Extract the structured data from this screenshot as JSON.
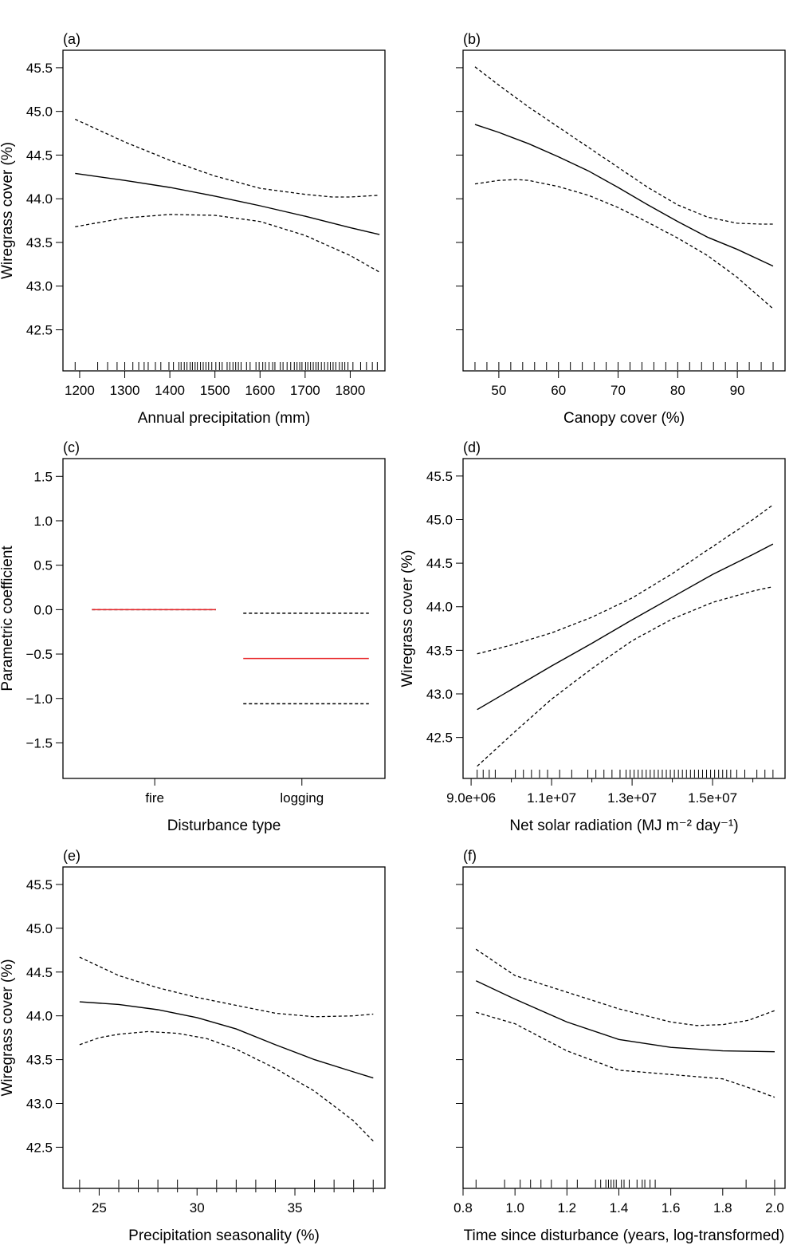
{
  "chart_data": [
    {
      "type": "line",
      "title": "(a)",
      "letter": "a",
      "xlabel": "Annual precipitation (mm)",
      "ylabel": "Wiregrass cover (%)",
      "show_ylabels": true,
      "xlim": [
        1163,
        1877
      ],
      "ylim": [
        42.03,
        45.7
      ],
      "xticks": [
        1200,
        1300,
        1400,
        1500,
        1600,
        1700,
        1800
      ],
      "xtick_labels": [
        "1200",
        "1300",
        "1400",
        "1500",
        "1600",
        "1700",
        "1800"
      ],
      "yticks": [
        42.5,
        43.0,
        43.5,
        44.0,
        44.5,
        45.0,
        45.5
      ],
      "ytick_labels": [
        "42.5",
        "43.0",
        "43.5",
        "44.0",
        "44.5",
        "45.0",
        "45.5"
      ],
      "series": [
        {
          "style": "solid",
          "x": [
            1190,
            1300,
            1400,
            1500,
            1600,
            1700,
            1800,
            1865
          ],
          "y": [
            44.29,
            44.21,
            44.13,
            44.03,
            43.92,
            43.8,
            43.67,
            43.59
          ]
        },
        {
          "style": "dashed",
          "x": [
            1190,
            1300,
            1400,
            1500,
            1600,
            1700,
            1760,
            1800,
            1865
          ],
          "y": [
            44.91,
            44.65,
            44.44,
            44.26,
            44.12,
            44.05,
            44.02,
            44.02,
            44.04
          ]
        },
        {
          "style": "dashed",
          "x": [
            1190,
            1300,
            1400,
            1500,
            1600,
            1700,
            1800,
            1865
          ],
          "y": [
            43.68,
            43.78,
            43.82,
            43.81,
            43.74,
            43.58,
            43.35,
            43.16
          ]
        }
      ],
      "rug": [
        1190,
        1240,
        1262,
        1283,
        1300,
        1318,
        1331,
        1343,
        1352,
        1368,
        1380,
        1398,
        1408,
        1420,
        1425,
        1432,
        1438,
        1445,
        1450,
        1456,
        1461,
        1468,
        1474,
        1480,
        1486,
        1493,
        1502,
        1510,
        1516,
        1527,
        1533,
        1540,
        1546,
        1552,
        1558,
        1570,
        1578,
        1591,
        1598,
        1606,
        1612,
        1620,
        1628,
        1633,
        1645,
        1651,
        1660,
        1668,
        1676,
        1682,
        1688,
        1693,
        1701,
        1706,
        1712,
        1718,
        1724,
        1729,
        1736,
        1743,
        1750,
        1756,
        1762,
        1768,
        1776,
        1782,
        1788,
        1795,
        1806,
        1823,
        1836,
        1849,
        1860
      ]
    },
    {
      "type": "line",
      "title": "(b)",
      "letter": "b",
      "xlabel": "Canopy cover (%)",
      "ylabel": "",
      "show_ylabels": false,
      "xlim": [
        44,
        98
      ],
      "ylim": [
        42.03,
        45.7
      ],
      "xticks": [
        50,
        60,
        70,
        80,
        90
      ],
      "xtick_labels": [
        "50",
        "60",
        "70",
        "80",
        "90"
      ],
      "yticks": [
        42.5,
        43.0,
        43.5,
        44.0,
        44.5,
        45.0,
        45.5
      ],
      "ytick_labels": [],
      "series": [
        {
          "style": "solid",
          "x": [
            46,
            50,
            55,
            60,
            65,
            70,
            75,
            80,
            85,
            90,
            96
          ],
          "y": [
            44.85,
            44.76,
            44.63,
            44.48,
            44.32,
            44.13,
            43.93,
            43.74,
            43.56,
            43.42,
            43.23
          ]
        },
        {
          "style": "dashed",
          "x": [
            46,
            50,
            55,
            60,
            65,
            70,
            75,
            80,
            85,
            90,
            94,
            96
          ],
          "y": [
            45.51,
            45.3,
            45.05,
            44.82,
            44.59,
            44.36,
            44.13,
            43.93,
            43.79,
            43.72,
            43.71,
            43.71
          ]
        },
        {
          "style": "dashed",
          "x": [
            46,
            50,
            53,
            55,
            60,
            65,
            70,
            75,
            80,
            85,
            90,
            96
          ],
          "y": [
            44.17,
            44.21,
            44.22,
            44.21,
            44.14,
            44.04,
            43.9,
            43.73,
            43.55,
            43.35,
            43.1,
            42.74
          ]
        }
      ],
      "rug": [
        46,
        48,
        50,
        52,
        54,
        56,
        58,
        60,
        62,
        64,
        66,
        68,
        70,
        72,
        74,
        76,
        78,
        80,
        82,
        84,
        86,
        88,
        90,
        92,
        94,
        96
      ]
    },
    {
      "type": "line",
      "title": "(c)",
      "letter": "c",
      "xlabel": "Disturbance type",
      "ylabel": "Parametric coefficient",
      "show_ylabels": true,
      "xlim": [
        0,
        1
      ],
      "ylim": [
        -1.9,
        1.7
      ],
      "categories": [
        "fire",
        "logging"
      ],
      "category_x": [
        0.285,
        0.742
      ],
      "xticks": [],
      "xtick_labels": [],
      "yticks": [
        -1.5,
        -1.0,
        -0.5,
        0.0,
        0.5,
        1.0,
        1.5
      ],
      "ytick_labels": [
        "−1.5",
        "−1.0",
        "−0.5",
        "0.0",
        "0.5",
        "1.0",
        "1.5"
      ],
      "segments": [
        {
          "category": "fire",
          "style": "dashed",
          "color": "#000000",
          "x": [
            0.09,
            0.475
          ],
          "y": 0.0
        },
        {
          "category": "fire",
          "style": "solid",
          "color": "#e8262a",
          "x": [
            0.09,
            0.475
          ],
          "y": 0.0
        },
        {
          "category": "logging",
          "style": "dashed",
          "color": "#000000",
          "x": [
            0.56,
            0.95
          ],
          "y": -0.04
        },
        {
          "category": "logging",
          "style": "solid",
          "color": "#e8262a",
          "x": [
            0.56,
            0.95
          ],
          "y": -0.55
        },
        {
          "category": "logging",
          "style": "dashed",
          "color": "#000000",
          "x": [
            0.56,
            0.95
          ],
          "y": -1.06
        }
      ],
      "rug": []
    },
    {
      "type": "line",
      "title": "(d)",
      "letter": "d",
      "xlabel": "Net solar radiation (MJ m⁻² day⁻¹)",
      "ylabel": "Wiregrass cover (%)",
      "show_ylabels": true,
      "xlim": [
        8800000,
        16800000
      ],
      "ylim": [
        42.03,
        45.7
      ],
      "xticks": [
        9000000,
        11000000,
        13000000,
        15000000
      ],
      "xtick_labels": [
        "9.0e+06",
        "1.1e+07",
        "1.3e+07",
        "1.5e+07"
      ],
      "minor_xticks": [
        10000000,
        12000000,
        14000000,
        16000000
      ],
      "yticks": [
        42.5,
        43.0,
        43.5,
        44.0,
        44.5,
        45.0,
        45.5
      ],
      "ytick_labels": [
        "42.5",
        "43.0",
        "43.5",
        "44.0",
        "44.5",
        "45.0",
        "45.5"
      ],
      "series": [
        {
          "style": "solid",
          "x": [
            9150000,
            10000000,
            11000000,
            12000000,
            13000000,
            14000000,
            15000000,
            16000000,
            16500000
          ],
          "y": [
            42.82,
            43.05,
            43.32,
            43.58,
            43.85,
            44.11,
            44.37,
            44.6,
            44.72
          ]
        },
        {
          "style": "dashed",
          "x": [
            9150000,
            10000000,
            11000000,
            12000000,
            13000000,
            14000000,
            15000000,
            16000000,
            16500000
          ],
          "y": [
            43.46,
            43.56,
            43.7,
            43.88,
            44.1,
            44.38,
            44.69,
            45.0,
            45.17
          ]
        },
        {
          "style": "dashed",
          "x": [
            9150000,
            10000000,
            11000000,
            12000000,
            13000000,
            14000000,
            15000000,
            16000000,
            16500000
          ],
          "y": [
            42.17,
            42.53,
            42.94,
            43.29,
            43.61,
            43.86,
            44.05,
            44.18,
            44.23
          ]
        }
      ],
      "rug": [
        9150000,
        9300000,
        9450000,
        9600000,
        10100000,
        10300000,
        10500000,
        10700000,
        10900000,
        11200000,
        11500000,
        11900000,
        12100000,
        12300000,
        12500000,
        12700000,
        12850000,
        12950000,
        13050000,
        13150000,
        13250000,
        13350000,
        13450000,
        13550000,
        13650000,
        13750000,
        13850000,
        13950000,
        14050000,
        14150000,
        14250000,
        14350000,
        14450000,
        14550000,
        14650000,
        14750000,
        14850000,
        14950000,
        15050000,
        15150000,
        15250000,
        15350000,
        15450000,
        15600000,
        15800000,
        16100000,
        16300000,
        16500000
      ]
    },
    {
      "type": "line",
      "title": "(e)",
      "letter": "e",
      "xlabel": "Precipitation seasonality (%)",
      "ylabel": "Wiregrass cover (%)",
      "show_ylabels": true,
      "xlim": [
        23.15,
        39.6
      ],
      "ylim": [
        42.03,
        45.7
      ],
      "xticks": [
        25,
        30,
        35
      ],
      "xtick_labels": [
        "25",
        "30",
        "35"
      ],
      "minor_xticks": [
        24,
        26,
        27,
        28,
        29,
        31,
        32,
        33,
        34,
        36,
        37,
        38,
        39
      ],
      "yticks": [
        42.5,
        43.0,
        43.5,
        44.0,
        44.5,
        45.0,
        45.5
      ],
      "ytick_labels": [
        "42.5",
        "43.0",
        "43.5",
        "44.0",
        "44.5",
        "45.0",
        "45.5"
      ],
      "series": [
        {
          "style": "solid",
          "x": [
            24,
            26,
            28,
            30,
            32,
            34,
            36,
            38,
            39
          ],
          "y": [
            44.16,
            44.13,
            44.07,
            43.98,
            43.85,
            43.67,
            43.5,
            43.36,
            43.29
          ]
        },
        {
          "style": "dashed",
          "x": [
            24,
            26,
            28,
            30,
            32,
            34,
            36,
            38,
            39
          ],
          "y": [
            44.67,
            44.46,
            44.32,
            44.21,
            44.12,
            44.03,
            43.99,
            44.0,
            44.02
          ]
        },
        {
          "style": "dashed",
          "x": [
            24,
            25,
            26,
            27.5,
            29,
            30.5,
            32,
            34,
            36,
            38,
            39
          ],
          "y": [
            43.67,
            43.75,
            43.79,
            43.82,
            43.8,
            43.74,
            43.62,
            43.4,
            43.14,
            42.8,
            42.57
          ]
        }
      ],
      "rug": [
        24,
        26,
        27,
        28,
        29,
        31,
        32,
        33,
        34,
        36,
        37,
        38,
        39
      ]
    },
    {
      "type": "line",
      "title": "(f)",
      "letter": "f",
      "xlabel": "Time since disturbance (years, log-transformed)",
      "ylabel": "",
      "show_ylabels": false,
      "xlim": [
        0.8,
        2.04
      ],
      "ylim": [
        42.03,
        45.7
      ],
      "xticks": [
        0.8,
        1.0,
        1.2,
        1.4,
        1.6,
        1.8,
        2.0
      ],
      "xtick_labels": [
        "0.8",
        "1.0",
        "1.2",
        "1.4",
        "1.6",
        "1.8",
        "2.0"
      ],
      "yticks": [
        42.5,
        43.0,
        43.5,
        44.0,
        44.5,
        45.0,
        45.5
      ],
      "ytick_labels": [],
      "series": [
        {
          "style": "solid",
          "x": [
            0.85,
            1.0,
            1.2,
            1.4,
            1.6,
            1.8,
            2.0
          ],
          "y": [
            44.4,
            44.19,
            43.93,
            43.73,
            43.64,
            43.6,
            43.59
          ]
        },
        {
          "style": "dashed",
          "x": [
            0.85,
            1.0,
            1.2,
            1.4,
            1.6,
            1.7,
            1.8,
            1.9,
            2.0
          ],
          "y": [
            44.76,
            44.46,
            44.27,
            44.08,
            43.93,
            43.89,
            43.9,
            43.95,
            44.06
          ]
        },
        {
          "style": "dashed",
          "x": [
            0.85,
            1.0,
            1.2,
            1.4,
            1.6,
            1.8,
            1.9,
            2.0
          ],
          "y": [
            44.04,
            43.91,
            43.6,
            43.38,
            43.33,
            43.28,
            43.18,
            43.07
          ]
        }
      ],
      "rug": [
        0.85,
        0.96,
        1.02,
        1.06,
        1.1,
        1.14,
        1.2,
        1.24,
        1.31,
        1.33,
        1.35,
        1.36,
        1.37,
        1.38,
        1.39,
        1.41,
        1.42,
        1.44,
        1.47,
        1.49,
        1.5,
        1.52,
        1.54,
        1.89,
        2.0
      ]
    }
  ]
}
